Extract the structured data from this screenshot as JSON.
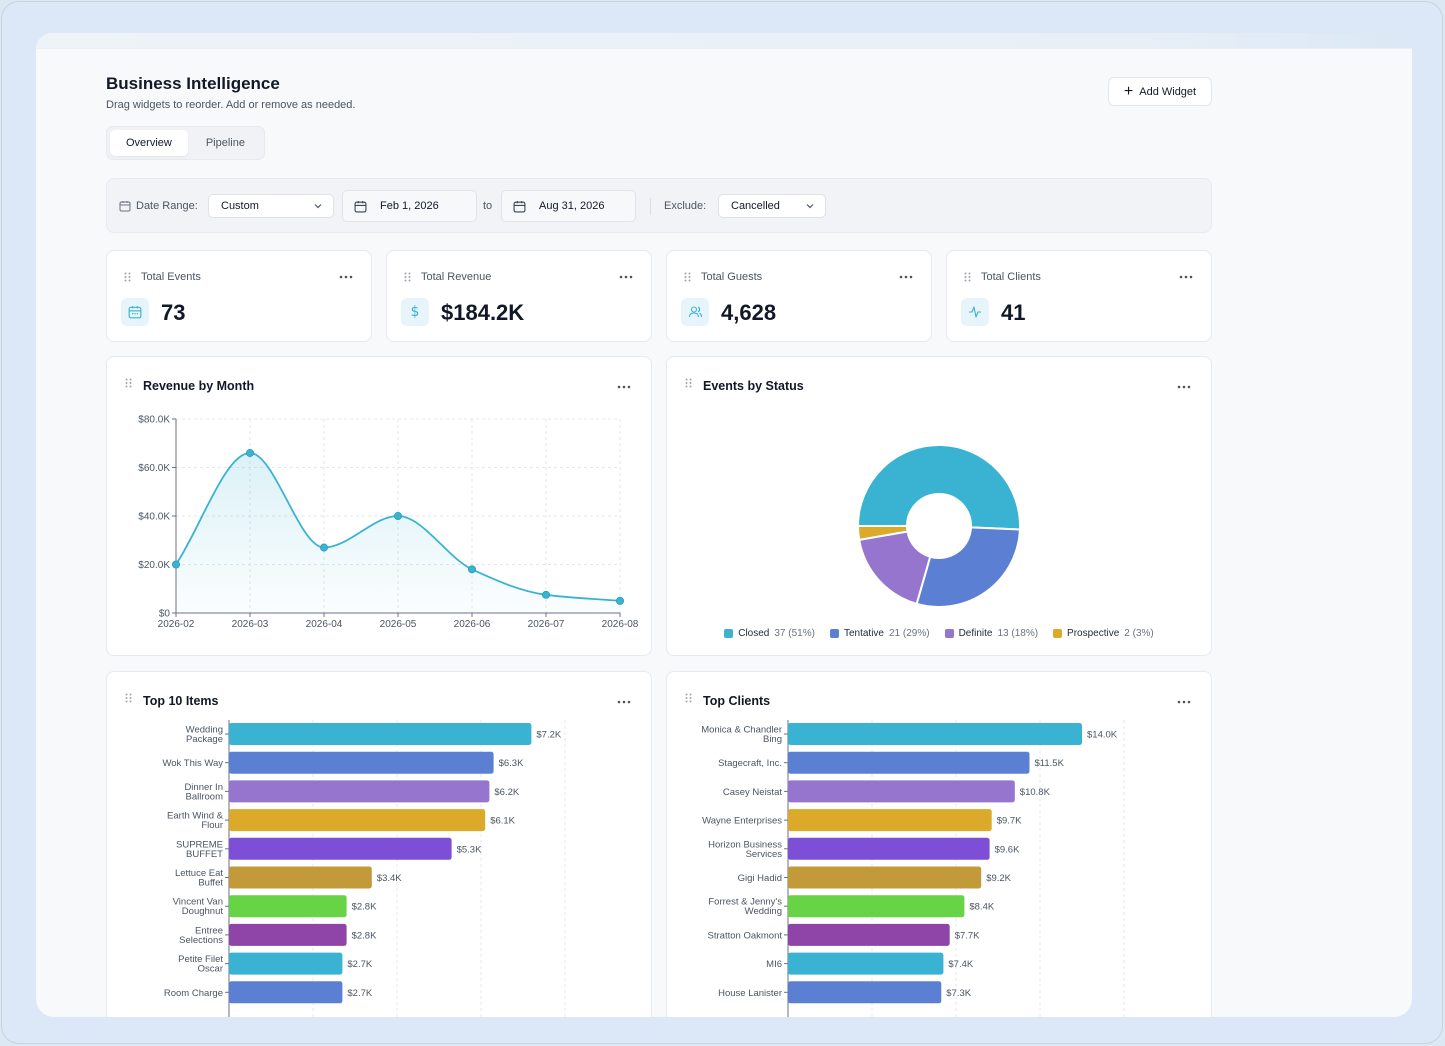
{
  "header": {
    "title": "Business Intelligence",
    "subtitle": "Drag widgets to reorder. Add or remove as needed.",
    "add_widget_label": "Add Widget"
  },
  "tabs": [
    {
      "label": "Overview",
      "active": true
    },
    {
      "label": "Pipeline",
      "active": false
    }
  ],
  "filters": {
    "date_range_label": "Date Range:",
    "date_range_value": "Custom",
    "start_date": "Feb 1, 2026",
    "to_label": "to",
    "end_date": "Aug 31, 2026",
    "exclude_label": "Exclude:",
    "exclude_value": "Cancelled"
  },
  "stats": [
    {
      "label": "Total Events",
      "value": "73",
      "icon": "calendar-icon"
    },
    {
      "label": "Total Revenue",
      "value": "$184.2K",
      "icon": "dollar-icon"
    },
    {
      "label": "Total Guests",
      "value": "4,628",
      "icon": "users-icon"
    },
    {
      "label": "Total Clients",
      "value": "41",
      "icon": "activity-icon"
    }
  ],
  "widgets": {
    "revenue_title": "Revenue by Month",
    "status_title": "Events by Status",
    "items_title": "Top 10 Items",
    "clients_title": "Top Clients"
  },
  "colors": {
    "accent": "#3ab3d3",
    "palette": [
      "#3ab3d3",
      "#5b80d3",
      "#9575cd",
      "#dcaa2a",
      "#7c4fd6",
      "#c29a3a",
      "#66d444",
      "#8f44a8",
      "#3ab3d3",
      "#5b80d3"
    ]
  },
  "chart_data": [
    {
      "type": "line",
      "title": "Revenue by Month",
      "x": [
        "2026-02",
        "2026-03",
        "2026-04",
        "2026-05",
        "2026-06",
        "2026-07",
        "2026-08"
      ],
      "values": [
        20000,
        66000,
        27000,
        40000,
        18000,
        7500,
        5000
      ],
      "ylim": [
        0,
        80000
      ],
      "yticks": [
        "$0",
        "$20.0K",
        "$40.0K",
        "$60.0K",
        "$80.0K"
      ],
      "grid": true
    },
    {
      "type": "pie",
      "title": "Events by Status",
      "slices": [
        {
          "name": "Closed",
          "value": 37,
          "pct": "(51%)",
          "color": "#3ab3d3"
        },
        {
          "name": "Tentative",
          "value": 21,
          "pct": "(29%)",
          "color": "#5b80d3"
        },
        {
          "name": "Definite",
          "value": 13,
          "pct": "(18%)",
          "color": "#9575cd"
        },
        {
          "name": "Prospective",
          "value": 2,
          "pct": "(3%)",
          "color": "#dcaa2a"
        }
      ],
      "legend": "bottom"
    },
    {
      "type": "bar",
      "title": "Top 10 Items",
      "orientation": "horizontal",
      "categories": [
        [
          "Wedding",
          "Package"
        ],
        [
          "Wok This Way"
        ],
        [
          "Dinner In",
          "Ballroom"
        ],
        [
          "Earth Wind &",
          "Flour"
        ],
        [
          "SUPREME",
          "BUFFET"
        ],
        [
          "Lettuce Eat",
          "Buffet"
        ],
        [
          "Vincent Van",
          "Doughnut"
        ],
        [
          "Entree",
          "Selections"
        ],
        [
          "Petite Filet",
          "Oscar"
        ],
        [
          "Room Charge"
        ]
      ],
      "values": [
        7200,
        6300,
        6200,
        6100,
        5300,
        3400,
        2800,
        2800,
        2700,
        2700
      ],
      "labels": [
        "$7.2K",
        "$6.3K",
        "$6.2K",
        "$6.1K",
        "$5.3K",
        "$3.4K",
        "$2.8K",
        "$2.8K",
        "$2.7K",
        "$2.7K"
      ],
      "xlim": [
        0,
        8000
      ]
    },
    {
      "type": "bar",
      "title": "Top Clients",
      "orientation": "horizontal",
      "categories": [
        [
          "Monica & Chandler",
          "Bing"
        ],
        [
          "Stagecraft, Inc."
        ],
        [
          "Casey Neistat"
        ],
        [
          "Wayne Enterprises"
        ],
        [
          "Horizon Business",
          "Services"
        ],
        [
          "Gigi Hadid"
        ],
        [
          "Forrest & Jenny's",
          "Wedding"
        ],
        [
          "Stratton Oakmont"
        ],
        [
          "MI6"
        ],
        [
          "House Lanister"
        ]
      ],
      "values": [
        14000,
        11500,
        10800,
        9700,
        9600,
        9200,
        8400,
        7700,
        7400,
        7300
      ],
      "labels": [
        "$14.0K",
        "$11.5K",
        "$10.8K",
        "$9.7K",
        "$9.6K",
        "$9.2K",
        "$8.4K",
        "$7.7K",
        "$7.4K",
        "$7.3K"
      ],
      "xlim": [
        0,
        16000
      ]
    }
  ]
}
